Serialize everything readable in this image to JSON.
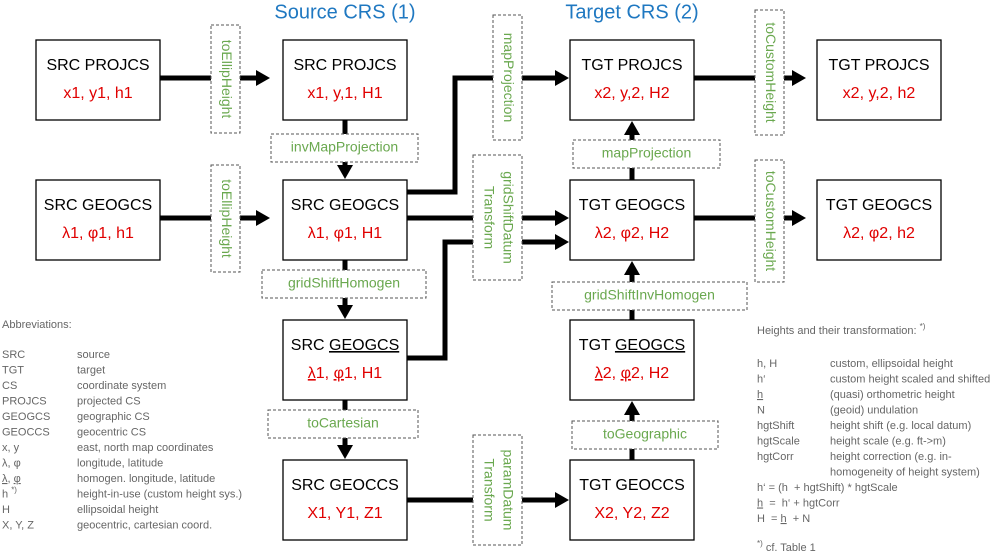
{
  "headers": {
    "source": "Source CRS (1)",
    "target": "Target CRS (2)"
  },
  "nodes": [
    {
      "title": [
        "SRC PROJCS"
      ],
      "coords": [
        "x1, y1, h1"
      ]
    },
    {
      "title": [
        "SRC GEOGCS"
      ],
      "coords": [
        "λ1, φ1, h1"
      ]
    },
    {
      "title": [
        "SRC PROJCS"
      ],
      "coords": [
        "x1, y,1, H1"
      ]
    },
    {
      "title": [
        "SRC GEOGCS"
      ],
      "coords": [
        "λ1, φ1, H1"
      ]
    },
    {
      "title": [
        "SRC ",
        "GEOGCS"
      ],
      "coords": [
        "λ",
        "1, ",
        "φ",
        "1, H1"
      ]
    },
    {
      "title": [
        "SRC GEOCCS"
      ],
      "coords": [
        "X1, Y1, Z1"
      ]
    },
    {
      "title": [
        "TGT PROJCS"
      ],
      "coords": [
        "x2, y,2, H2"
      ]
    },
    {
      "title": [
        "TGT GEOGCS"
      ],
      "coords": [
        "λ2, φ2, H2"
      ]
    },
    {
      "title": [
        "TGT ",
        "GEOGCS"
      ],
      "coords": [
        "λ",
        "2, ",
        "φ",
        "2, H2"
      ]
    },
    {
      "title": [
        "TGT GEOCCS"
      ],
      "coords": [
        "X2, Y2, Z2"
      ]
    },
    {
      "title": [
        "TGT PROJCS"
      ],
      "coords": [
        "x2, y,2, h2"
      ]
    },
    {
      "title": [
        "TGT GEOGCS"
      ],
      "coords": [
        "λ2, φ2, h2"
      ]
    }
  ],
  "operations": [
    [
      "toEllipHeight"
    ],
    [
      "toEllipHeight"
    ],
    [
      "invMapProjection"
    ],
    [
      "gridShiftHomogen"
    ],
    [
      "toCartesian"
    ],
    [
      "mapProjection"
    ],
    [
      "gridShiftDatum",
      "Transform"
    ],
    [
      "paramDatum",
      "Transform"
    ],
    [
      "mapProjection"
    ],
    [
      "gridShiftInvHomogen"
    ],
    [
      "toGeographic"
    ],
    [
      "toCustomHeight"
    ],
    [
      "toCustomHeight"
    ]
  ],
  "abbreviations": {
    "title": "Abbreviations:",
    "rows": [
      [
        [
          "SRC"
        ],
        "source"
      ],
      [
        [
          "TGT"
        ],
        "target"
      ],
      [
        [
          "CS"
        ],
        "coordinate system"
      ],
      [
        [
          "PROJCS"
        ],
        "projected CS"
      ],
      [
        [
          "GEOGCS"
        ],
        "geographic CS"
      ],
      [
        [
          "GEOCCS"
        ],
        "geocentric CS"
      ],
      [
        [
          "x, y"
        ],
        "east, north map coordinates"
      ],
      [
        [
          "λ, φ"
        ],
        "longitude, latitude"
      ],
      [
        [
          "λ",
          ", ",
          "φ"
        ],
        "homogen. longitude, latitude"
      ],
      [
        [
          "h ",
          "*)"
        ],
        "height-in-use (custom height sys.)"
      ],
      [
        [
          "H"
        ],
        "ellipsoidal height"
      ],
      [
        [
          "X, Y, Z"
        ],
        "geocentric, cartesian coord."
      ]
    ]
  },
  "heights": {
    "title": [
      "Heights and their transformation: ",
      "*)"
    ],
    "rows": [
      [
        [
          "h, H"
        ],
        [
          "custom, ellipsoidal height"
        ]
      ],
      [
        [
          "h‘"
        ],
        [
          "custom height scaled and shifted"
        ]
      ],
      [
        [
          "h"
        ],
        [
          "(quasi) orthometric height"
        ]
      ],
      [
        [
          "N"
        ],
        [
          "(geoid) undulation"
        ]
      ],
      [
        [
          "hgtShift"
        ],
        [
          "height shift (e.g. local datum)"
        ]
      ],
      [
        [
          "hgtScale"
        ],
        [
          "height scale (e.g. ft->m)"
        ]
      ],
      [
        [
          "hgtCorr"
        ],
        [
          "height correction (e.g. in-",
          "homogeneity of height system)"
        ]
      ]
    ],
    "formulas": [
      [
        "h‘ = (h  + hgtShift) * hgtScale"
      ],
      [
        "h",
        "  =  h‘ + hgtCorr"
      ],
      [
        "H  = ",
        "h",
        "  + N"
      ]
    ],
    "footnote": [
      "*)",
      " cf. Table 1"
    ]
  }
}
